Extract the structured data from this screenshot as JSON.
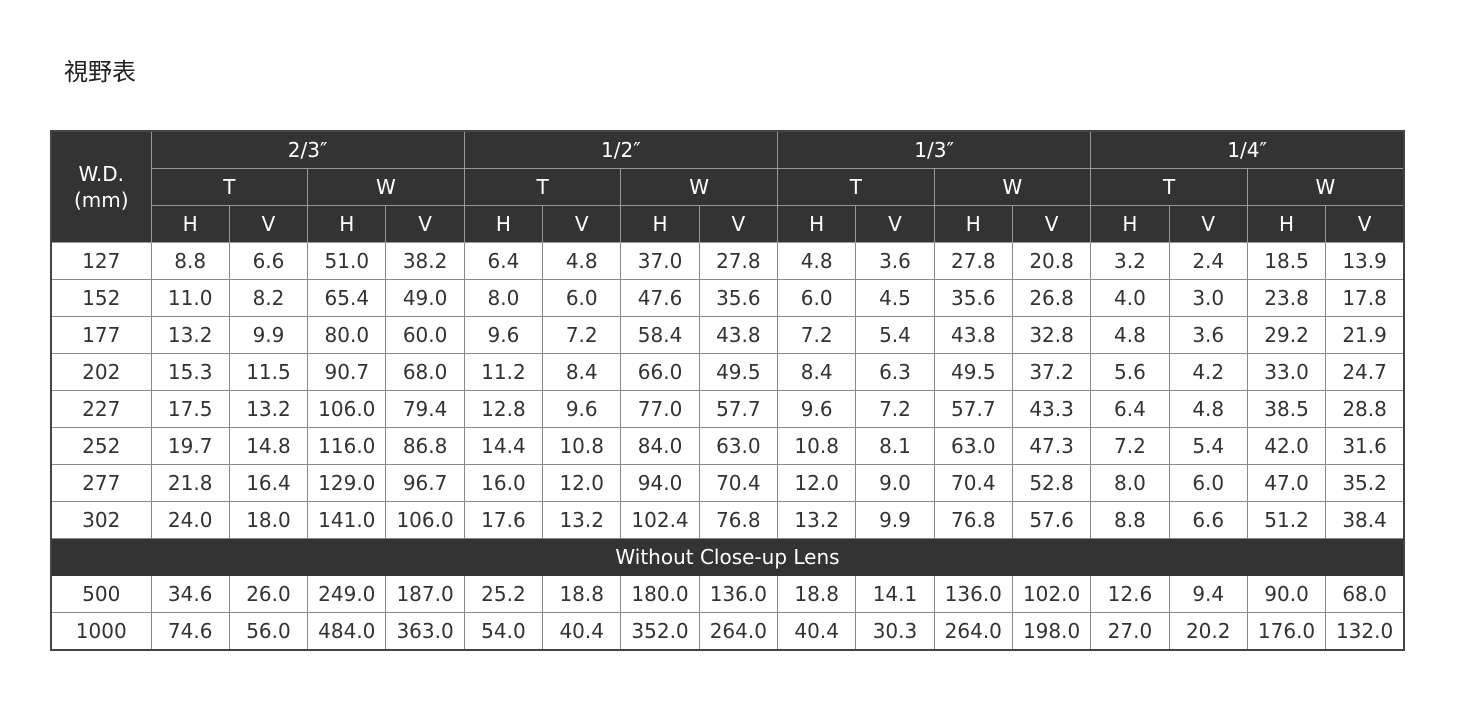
{
  "title": "視野表",
  "table": {
    "corner": [
      "W.D.",
      "(mm)"
    ],
    "sizes": [
      "2/3″",
      "1/2″",
      "1/3″",
      "1/4″"
    ],
    "modes": [
      "T",
      "W",
      "T",
      "W",
      "T",
      "W",
      "T",
      "W"
    ],
    "axes": [
      "H",
      "V",
      "H",
      "V",
      "H",
      "V",
      "H",
      "V",
      "H",
      "V",
      "H",
      "V",
      "H",
      "V",
      "H",
      "V"
    ],
    "rows": [
      [
        "127",
        "8.8",
        "6.6",
        "51.0",
        "38.2",
        "6.4",
        "4.8",
        "37.0",
        "27.8",
        "4.8",
        "3.6",
        "27.8",
        "20.8",
        "3.2",
        "2.4",
        "18.5",
        "13.9"
      ],
      [
        "152",
        "11.0",
        "8.2",
        "65.4",
        "49.0",
        "8.0",
        "6.0",
        "47.6",
        "35.6",
        "6.0",
        "4.5",
        "35.6",
        "26.8",
        "4.0",
        "3.0",
        "23.8",
        "17.8"
      ],
      [
        "177",
        "13.2",
        "9.9",
        "80.0",
        "60.0",
        "9.6",
        "7.2",
        "58.4",
        "43.8",
        "7.2",
        "5.4",
        "43.8",
        "32.8",
        "4.8",
        "3.6",
        "29.2",
        "21.9"
      ],
      [
        "202",
        "15.3",
        "11.5",
        "90.7",
        "68.0",
        "11.2",
        "8.4",
        "66.0",
        "49.5",
        "8.4",
        "6.3",
        "49.5",
        "37.2",
        "5.6",
        "4.2",
        "33.0",
        "24.7"
      ],
      [
        "227",
        "17.5",
        "13.2",
        "106.0",
        "79.4",
        "12.8",
        "9.6",
        "77.0",
        "57.7",
        "9.6",
        "7.2",
        "57.7",
        "43.3",
        "6.4",
        "4.8",
        "38.5",
        "28.8"
      ],
      [
        "252",
        "19.7",
        "14.8",
        "116.0",
        "86.8",
        "14.4",
        "10.8",
        "84.0",
        "63.0",
        "10.8",
        "8.1",
        "63.0",
        "47.3",
        "7.2",
        "5.4",
        "42.0",
        "31.6"
      ],
      [
        "277",
        "21.8",
        "16.4",
        "129.0",
        "96.7",
        "16.0",
        "12.0",
        "94.0",
        "70.4",
        "12.0",
        "9.0",
        "70.4",
        "52.8",
        "8.0",
        "6.0",
        "47.0",
        "35.2"
      ],
      [
        "302",
        "24.0",
        "18.0",
        "141.0",
        "106.0",
        "17.6",
        "13.2",
        "102.4",
        "76.8",
        "13.2",
        "9.9",
        "76.8",
        "57.6",
        "8.8",
        "6.6",
        "51.2",
        "38.4"
      ]
    ],
    "section": "Without Close-up Lens",
    "section_rows": [
      [
        "500",
        "34.6",
        "26.0",
        "249.0",
        "187.0",
        "25.2",
        "18.8",
        "180.0",
        "136.0",
        "18.8",
        "14.1",
        "136.0",
        "102.0",
        "12.6",
        "9.4",
        "90.0",
        "68.0"
      ],
      [
        "1000",
        "74.6",
        "56.0",
        "484.0",
        "363.0",
        "54.0",
        "40.4",
        "352.0",
        "264.0",
        "40.4",
        "30.3",
        "264.0",
        "198.0",
        "27.0",
        "20.2",
        "176.0",
        "132.0"
      ]
    ]
  }
}
